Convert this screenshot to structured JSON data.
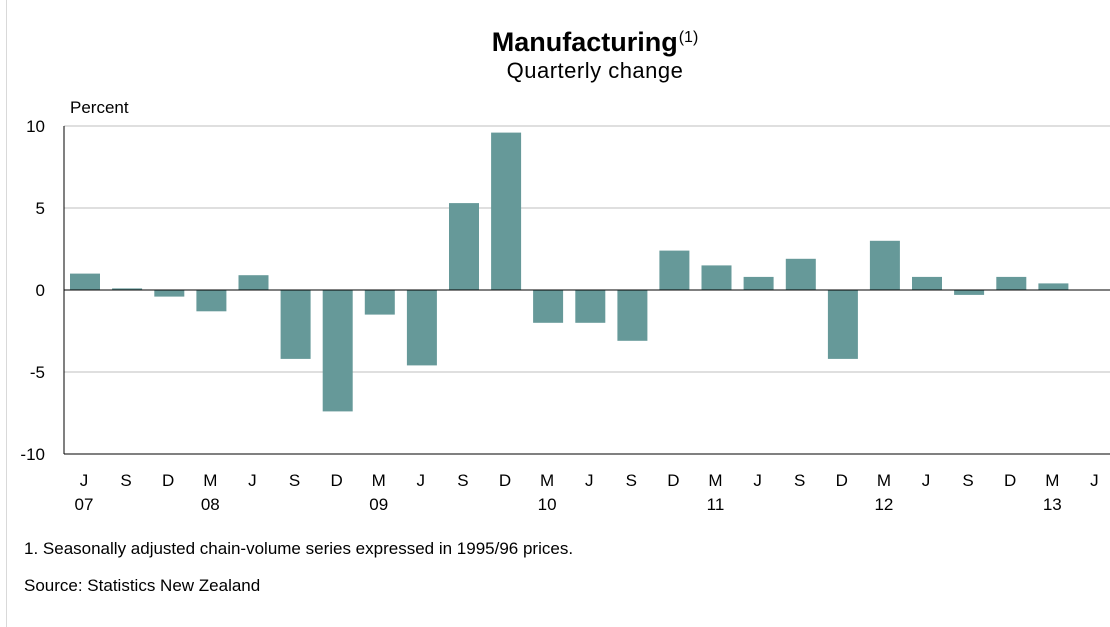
{
  "chart_data": {
    "type": "bar",
    "title": "Manufacturing",
    "title_superscript": "(1)",
    "subtitle": "Quarterly change",
    "ylabel": "Percent",
    "xlabel": "",
    "ylim": [
      -10,
      10
    ],
    "yticks": [
      10,
      5,
      0,
      -5,
      -10
    ],
    "grid": true,
    "color": "#669999",
    "categories": [
      "Jun 07",
      "Sep 07",
      "Dec 07",
      "Mar 08",
      "Jun 08",
      "Sep 08",
      "Dec 08",
      "Mar 09",
      "Jun 09",
      "Sep 09",
      "Dec 09",
      "Mar 10",
      "Jun 10",
      "Sep 10",
      "Dec 10",
      "Mar 11",
      "Jun 11",
      "Sep 11",
      "Dec 11",
      "Mar 12",
      "Jun 12",
      "Sep 12",
      "Dec 12",
      "Mar 13"
    ],
    "values": [
      1.0,
      0.1,
      -0.4,
      -1.3,
      0.9,
      -4.2,
      -7.4,
      -1.5,
      -4.6,
      5.3,
      9.6,
      -2.0,
      -2.0,
      -3.1,
      2.4,
      1.5,
      0.8,
      1.9,
      -4.2,
      3.0,
      0.8,
      -0.3,
      0.8,
      0.4
    ],
    "x_tick_labels": [
      "J",
      "S",
      "D",
      "M",
      "J",
      "S",
      "D",
      "M",
      "J",
      "S",
      "D",
      "M",
      "J",
      "S",
      "D",
      "M",
      "J",
      "S",
      "D",
      "M",
      "J",
      "S",
      "D",
      "M",
      "J"
    ],
    "x_year_labels": [
      {
        "label": "07",
        "tick_index": 0
      },
      {
        "label": "08",
        "tick_index": 3
      },
      {
        "label": "09",
        "tick_index": 7
      },
      {
        "label": "10",
        "tick_index": 11
      },
      {
        "label": "11",
        "tick_index": 15
      },
      {
        "label": "12",
        "tick_index": 19
      },
      {
        "label": "13",
        "tick_index": 23
      }
    ]
  },
  "footnote": "1.  Seasonally adjusted chain-volume series expressed in 1995/96 prices.",
  "source": "Source: Statistics New Zealand"
}
